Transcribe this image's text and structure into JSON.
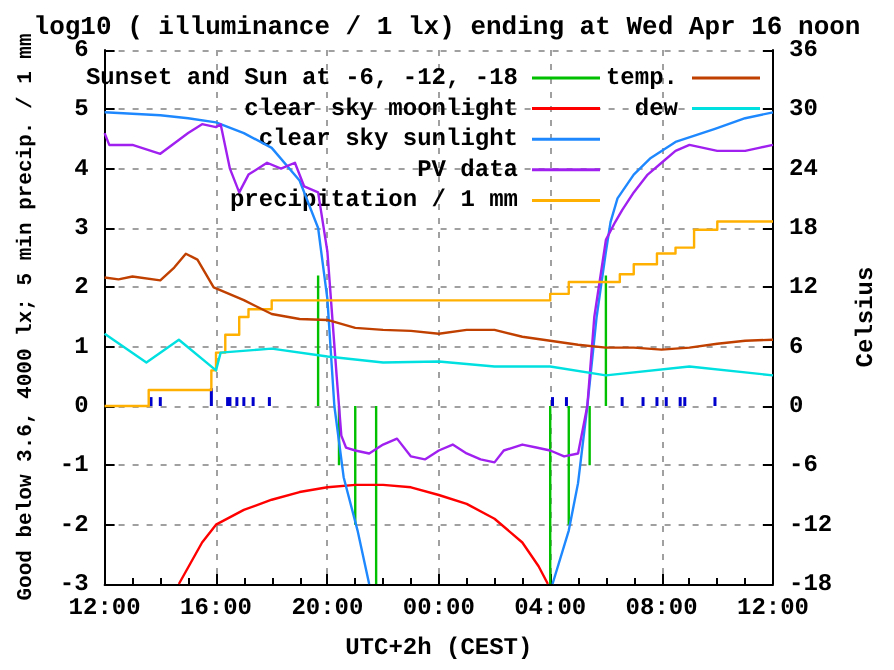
{
  "chart_data": {
    "type": "line",
    "title": "log10 ( illuminance / 1 lx) ending at Wed Apr 16 noon",
    "xlabel": "UTC+2h (CEST)",
    "ylabel": "Good below 3.6, 4000 lx; 5 min precip. / 1 mm",
    "y2label": "Celsius",
    "xlim": [
      "--04-15T12:00",
      "--04-16T12:00"
    ],
    "xticks": [
      {
        "value": "--04-15T12:00",
        "label": "12:00"
      },
      {
        "value": "--04-15T16:00",
        "label": "16:00"
      },
      {
        "value": "--04-15T20:00",
        "label": "20:00"
      },
      {
        "value": "--04-16T00:00",
        "label": "00:00"
      },
      {
        "value": "--04-16T04:00",
        "label": "04:00"
      },
      {
        "value": "--04-16T08:00",
        "label": "08:00"
      },
      {
        "value": "--04-16T12:00",
        "label": "12:00"
      }
    ],
    "ylim": [
      -3,
      6
    ],
    "yticks": [
      -3,
      -2,
      -1,
      0,
      1,
      2,
      3,
      4,
      5,
      6
    ],
    "y2lim": [
      -18,
      36
    ],
    "y2ticks": [
      -18,
      -12,
      -6,
      0,
      6,
      12,
      18,
      24,
      30,
      36
    ],
    "grid": true,
    "legend": "top",
    "marker": "none",
    "series": [
      {
        "name": "Sunset and Sun at -6, -12, -18",
        "color": "#00c000",
        "x": [
          "--04-15T19:40",
          "--04-15T19:40",
          null,
          "--04-15T20:25",
          "--04-15T20:25",
          null,
          "--04-15T21:00",
          "--04-15T21:00",
          null,
          "--04-15T21:45",
          "--04-15T21:45",
          null,
          "--04-16T04:00",
          "--04-16T04:00",
          null,
          "--04-16T04:40",
          "--04-16T04:40",
          null,
          "--04-16T05:25",
          "--04-16T05:25",
          null,
          "--04-16T06:00",
          "--04-16T06:00"
        ],
        "values": [
          0,
          2.2,
          null,
          0,
          -1,
          null,
          0,
          -2,
          null,
          0,
          -3,
          null,
          0,
          -3,
          null,
          0,
          -2,
          null,
          0,
          -1,
          null,
          0,
          2.2
        ]
      },
      {
        "name": "clear sky moonlight",
        "color": "#ff0000",
        "x": [
          "--04-15T14:40",
          "--04-15T15:30",
          "--04-15T16:00",
          "--04-15T17:00",
          "--04-15T18:00",
          "--04-15T19:00",
          "--04-15T20:00",
          "--04-15T21:00",
          "--04-15T22:00",
          "--04-15T23:00",
          "--04-16T00:00",
          "--04-16T01:00",
          "--04-16T02:00",
          "--04-16T03:00",
          "--04-16T03:35",
          "--04-16T03:55"
        ],
        "values": [
          -3,
          -2.3,
          -2.0,
          -1.75,
          -1.58,
          -1.45,
          -1.37,
          -1.33,
          -1.33,
          -1.37,
          -1.5,
          -1.65,
          -1.9,
          -2.3,
          -2.7,
          -3
        ]
      },
      {
        "name": "clear sky sunlight",
        "color": "#1e88ff",
        "x": [
          "--04-15T12:00",
          "--04-15T14:00",
          "--04-15T15:00",
          "--04-15T16:00",
          "--04-15T17:00",
          "--04-15T18:00",
          "--04-15T19:00",
          "--04-15T19:40",
          "--04-15T20:00",
          "--04-15T20:15",
          "--04-15T20:35",
          "--04-15T21:05",
          "--04-15T21:30",
          null,
          "--04-16T04:05",
          "--04-16T04:40",
          "--04-16T05:00",
          "--04-16T05:20",
          "--04-16T05:40",
          "--04-16T06:00",
          "--04-16T06:10",
          "--04-16T06:25",
          "--04-16T07:00",
          "--04-16T07:35",
          "--04-16T08:30",
          "--04-16T09:55",
          "--04-16T11:00",
          "--04-16T12:00"
        ],
        "values": [
          4.95,
          4.9,
          4.85,
          4.78,
          4.6,
          4.35,
          3.8,
          3.0,
          1.8,
          0,
          -1.2,
          -2.1,
          -3,
          null,
          -3,
          -2.1,
          -1.3,
          0,
          1.5,
          2.6,
          3.1,
          3.5,
          3.9,
          4.17,
          4.45,
          4.67,
          4.85,
          4.95
        ]
      },
      {
        "name": "PV data",
        "color": "#a020f0",
        "x": [
          "--04-15T12:00",
          "--04-15T12:10",
          "--04-15T13:00",
          "--04-15T14:00",
          "--04-15T15:00",
          "--04-15T15:30",
          "--04-15T16:00",
          "--04-15T16:10",
          "--04-15T16:30",
          "--04-15T16:50",
          "--04-15T17:10",
          "--04-15T17:50",
          "--04-15T18:20",
          "--04-15T18:50",
          "--04-15T19:10",
          "--04-15T19:40",
          "--04-15T20:00",
          "--04-15T20:20",
          "--04-15T20:30",
          "--04-15T20:40",
          "--04-15T21:00",
          "--04-15T21:30",
          "--04-15T22:00",
          "--04-15T22:30",
          "--04-15T23:00",
          "--04-15T23:30",
          "--04-16T00:00",
          "--04-16T00:30",
          "--04-16T01:00",
          "--04-16T01:30",
          "--04-16T02:00",
          "--04-16T02:20",
          "--04-16T03:00",
          "--04-16T03:30",
          "--04-16T04:00",
          "--04-16T04:30",
          "--04-16T05:00",
          "--04-16T05:20",
          "--04-16T05:35",
          "--04-16T06:00",
          "--04-16T06:20",
          "--04-16T06:35",
          "--04-16T07:00",
          "--04-16T07:30",
          "--04-16T08:00",
          "--04-16T08:30",
          "--04-16T09:00",
          "--04-16T10:00",
          "--04-16T11:00",
          "--04-16T11:30",
          "--04-16T12:00"
        ],
        "values": [
          4.6,
          4.4,
          4.4,
          4.25,
          4.6,
          4.75,
          4.7,
          4.75,
          4.0,
          3.6,
          3.9,
          4.1,
          4.0,
          4.1,
          3.7,
          3.6,
          2.6,
          0.5,
          -0.5,
          -0.7,
          -0.75,
          -0.8,
          -0.65,
          -0.55,
          -0.85,
          -0.9,
          -0.75,
          -0.65,
          -0.8,
          -0.9,
          -0.95,
          -0.75,
          -0.65,
          -0.7,
          -0.75,
          -0.85,
          -0.8,
          0,
          1.5,
          2.8,
          3.1,
          3.3,
          3.6,
          3.9,
          4.1,
          4.3,
          4.4,
          4.3,
          4.3,
          4.35,
          4.4
        ]
      },
      {
        "name": "precipitation / 1 mm",
        "type": "step",
        "color": "#ffb000",
        "x": [
          "--04-15T12:00",
          "--04-15T13:35",
          "--04-15T15:50",
          "--04-15T16:00",
          "--04-15T16:20",
          "--04-15T16:50",
          "--04-15T17:10",
          "--04-15T18:00",
          "--04-16T04:00",
          "--04-16T04:40",
          "--04-16T06:30",
          "--04-16T07:00",
          "--04-16T07:50",
          "--04-16T08:30",
          "--04-16T09:10",
          "--04-16T10:00",
          "--04-16T12:00"
        ],
        "values": [
          0,
          0.27,
          0.6,
          0.9,
          1.2,
          1.5,
          1.63,
          1.78,
          1.89,
          2.09,
          2.22,
          2.39,
          2.57,
          2.67,
          2.97,
          3.11,
          3.11
        ]
      },
      {
        "name": "temp.",
        "axis": "y2",
        "color": "#c04000",
        "x": [
          "--04-15T12:00",
          "--04-15T12:30",
          "--04-15T13:00",
          "--04-15T14:00",
          "--04-15T14:30",
          "--04-15T14:55",
          "--04-15T15:20",
          "--04-15T15:55",
          "--04-15T17:00",
          "--04-15T18:00",
          "--04-15T19:00",
          "--04-15T20:00",
          "--04-15T21:00",
          "--04-15T22:00",
          "--04-15T23:00",
          "--04-16T00:00",
          "--04-16T01:00",
          "--04-16T02:00",
          "--04-16T03:00",
          "--04-16T04:00",
          "--04-16T05:00",
          "--04-16T06:00",
          "--04-16T07:00",
          "--04-16T08:00",
          "--04-16T09:00",
          "--04-16T10:00",
          "--04-16T11:00",
          "--04-16T12:00"
        ],
        "values": [
          13,
          12.8,
          13.1,
          12.7,
          14,
          15.4,
          14.8,
          12,
          10.7,
          9.3,
          8.8,
          8.7,
          7.9,
          7.7,
          7.6,
          7.3,
          7.7,
          7.7,
          7.0,
          6.6,
          6.2,
          5.9,
          5.9,
          5.7,
          5.9,
          6.3,
          6.6,
          6.7
        ]
      },
      {
        "name": "dew",
        "axis": "y2",
        "color": "#00e0e0",
        "x": [
          "--04-15T12:00",
          "--04-15T13:30",
          "--04-15T14:40",
          "--04-15T16:00",
          "--04-15T16:10",
          "--04-15T18:00",
          "--04-15T20:00",
          "--04-15T22:00",
          "--04-16T00:00",
          "--04-16T02:00",
          "--04-16T04:00",
          "--04-16T06:00",
          "--04-16T09:00",
          "--04-16T12:00"
        ],
        "values": [
          7.3,
          4.4,
          6.7,
          3.6,
          5.4,
          5.8,
          5.0,
          4.4,
          4.5,
          4.0,
          4.0,
          3.1,
          4.0,
          3.1
        ]
      },
      {
        "type": "bar",
        "color": "#0000cc",
        "x": [
          "--04-15T13:40",
          "--04-15T14:00",
          "--04-15T15:50",
          "--04-15T16:25",
          "--04-15T16:30",
          "--04-15T16:45",
          "--04-15T17:00",
          "--04-15T17:20",
          "--04-15T17:55",
          "--04-16T04:05",
          "--04-16T04:35",
          "--04-16T06:35",
          "--04-16T07:20",
          "--04-16T07:50",
          "--04-16T08:10",
          "--04-16T08:40",
          "--04-16T08:50",
          "--04-16T09:55"
        ],
        "values": [
          0.15,
          0.15,
          0.3,
          0.15,
          0.15,
          0.15,
          0.15,
          0.15,
          0.15,
          0.15,
          0.15,
          0.15,
          0.15,
          0.15,
          0.15,
          0.15,
          0.15,
          0.15
        ]
      }
    ]
  }
}
